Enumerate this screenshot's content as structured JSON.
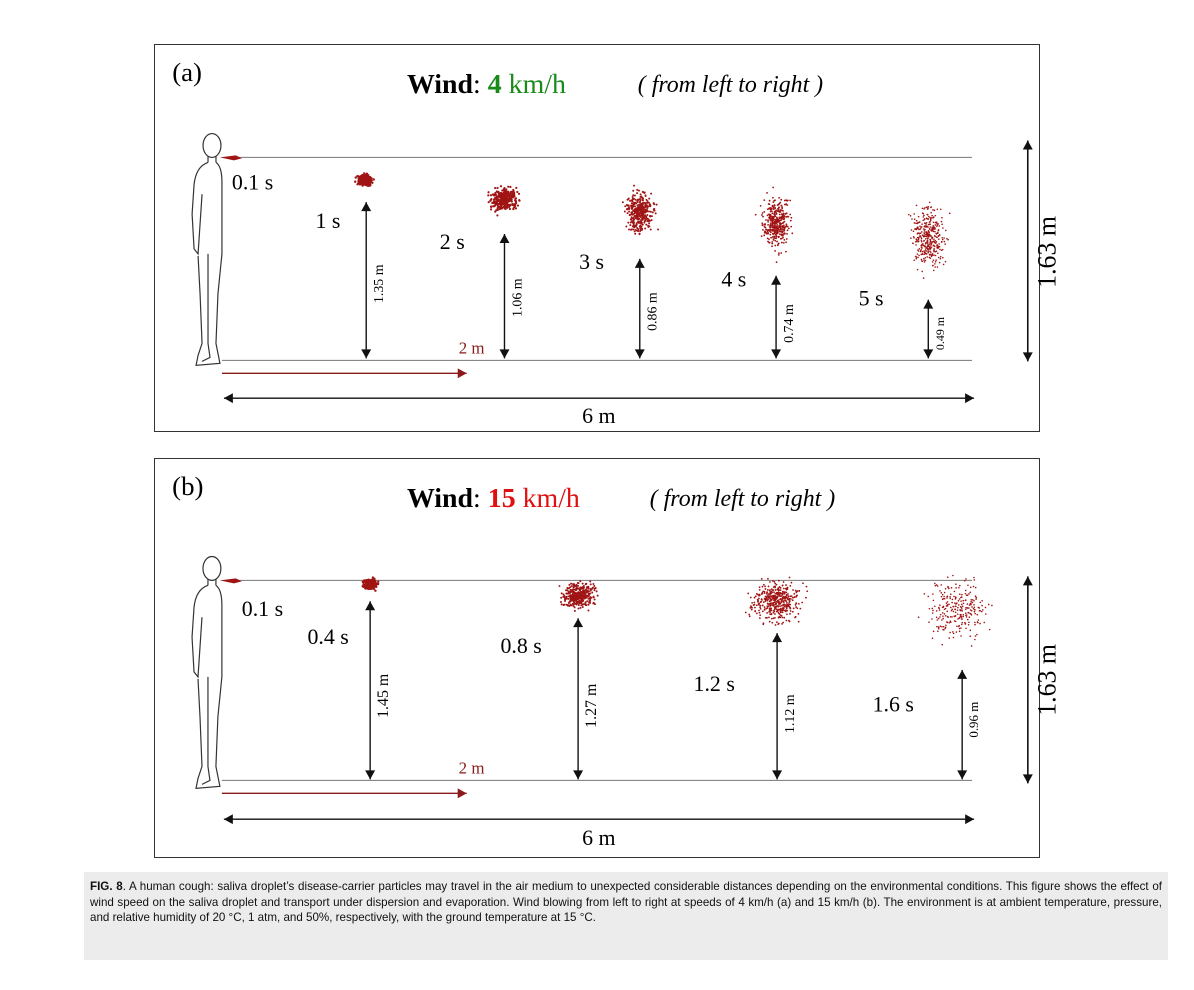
{
  "panels": [
    {
      "label": "(a)",
      "wind_word": "Wind",
      "wind_colon": ":",
      "wind_speed": "4",
      "wind_unit": "km/h",
      "wind_note": "( from left to right )",
      "speed_color": "#1a8a1a",
      "puffs": [
        {
          "time": "0.1 s"
        },
        {
          "time": "1 s",
          "height": "1.35 m",
          "height_value": 1.35
        },
        {
          "time": "2 s",
          "height": "1.06 m",
          "height_value": 1.06
        },
        {
          "time": "3 s",
          "height": "0.86 m",
          "height_value": 0.86
        },
        {
          "time": "4 s",
          "height": "0.74 m",
          "height_value": 0.74
        },
        {
          "time": "5 s",
          "height": "0.49 m",
          "height_value": 0.49
        }
      ],
      "mouth_height": "1.63 m",
      "distance_marker": "2 m",
      "total_distance": "6 m"
    },
    {
      "label": "(b)",
      "wind_word": "Wind",
      "wind_colon": ":",
      "wind_speed": "15",
      "wind_unit": "km/h",
      "wind_note": "( from left to right )",
      "speed_color": "#e01010",
      "puffs": [
        {
          "time": "0.1 s"
        },
        {
          "time": "0.4 s",
          "height": "1.45 m",
          "height_value": 1.45
        },
        {
          "time": "0.8 s",
          "height": "1.27 m",
          "height_value": 1.27
        },
        {
          "time": "1.2 s",
          "height": "1.12 m",
          "height_value": 1.12
        },
        {
          "time": "1.6 s",
          "height": "0.96 m",
          "height_value": 0.96
        }
      ],
      "mouth_height": "1.63 m",
      "distance_marker": "2 m",
      "total_distance": "6 m"
    }
  ],
  "colors": {
    "droplet": "#a01414",
    "marker": "#8b1a1a",
    "line": "#555555"
  },
  "caption": {
    "label": "FIG. 8",
    "text": ". A human cough: saliva droplet’s disease-carrier particles may travel in the air medium to unexpected considerable distances depending on the environmental conditions. This figure shows the effect of wind speed on the saliva droplet and transport under dispersion and evaporation. Wind blowing from left to right at speeds of 4 km/h (a) and 15 km/h (b). The environment is at ambient temperature, pressure, and relative humidity of 20 °C, 1 atm, and 50%, respectively, with the ground temperature at 15 °C."
  }
}
